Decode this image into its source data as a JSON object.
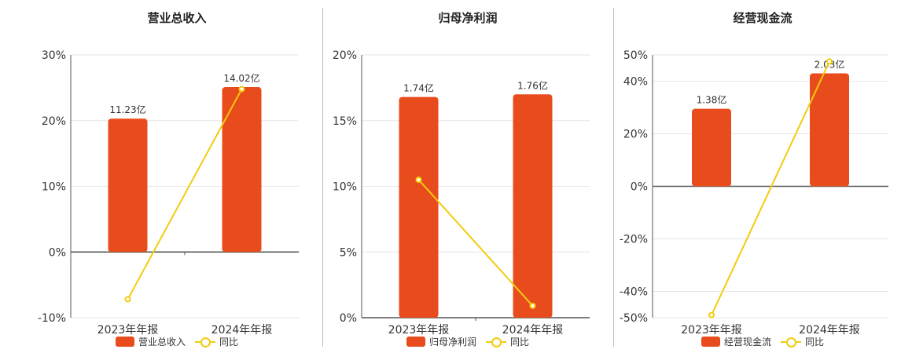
{
  "colors": {
    "bar": "#e84c1c",
    "line": "#f2cc0c",
    "grid": "#e6e6e6",
    "axis": "#555555"
  },
  "chart_data": [
    {
      "type": "bar",
      "title": "营业总收入",
      "categories": [
        "2023年年报",
        "2024年年报"
      ],
      "series": [
        {
          "name": "营业总收入",
          "type": "bar",
          "values": [
            20.3,
            25.1
          ],
          "labels": [
            "11.23亿",
            "14.02亿"
          ]
        },
        {
          "name": "同比",
          "type": "line",
          "values": [
            -7.2,
            24.8
          ]
        }
      ],
      "yticks": [
        "30%",
        "20%",
        "10%",
        "0%",
        "-10%"
      ],
      "ylim": [
        -10,
        30
      ],
      "grid": true,
      "legend": "bottom"
    },
    {
      "type": "bar",
      "title": "归母净利润",
      "categories": [
        "2023年年报",
        "2024年年报"
      ],
      "series": [
        {
          "name": "归母净利润",
          "type": "bar",
          "values": [
            16.8,
            17.0
          ],
          "labels": [
            "1.74亿",
            "1.76亿"
          ]
        },
        {
          "name": "同比",
          "type": "line",
          "values": [
            10.5,
            0.9
          ]
        }
      ],
      "yticks": [
        "20%",
        "15%",
        "10%",
        "5%",
        "0%"
      ],
      "ylim": [
        0,
        20
      ],
      "grid": true,
      "legend": "bottom"
    },
    {
      "type": "bar",
      "title": "经营现金流",
      "categories": [
        "2023年年报",
        "2024年年报"
      ],
      "series": [
        {
          "name": "经营现金流",
          "type": "bar",
          "values": [
            29.5,
            43.0
          ],
          "labels": [
            "1.38亿",
            "2.03亿"
          ]
        },
        {
          "name": "同比",
          "type": "line",
          "values": [
            -49.0,
            47.5
          ]
        }
      ],
      "yticks": [
        "50%",
        "40%",
        "20%",
        "0%",
        "-20%",
        "-40%",
        "-50%"
      ],
      "ylim": [
        -50,
        50
      ],
      "grid": true,
      "legend": "bottom"
    }
  ]
}
